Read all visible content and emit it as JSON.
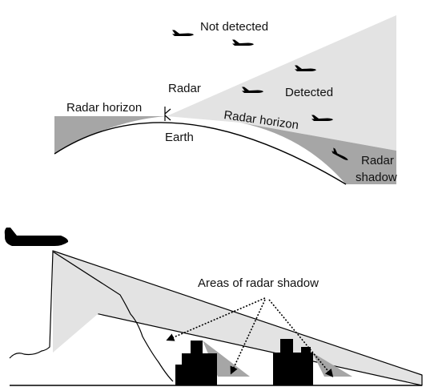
{
  "top_diagram": {
    "labels": {
      "not_detected": "Not detected",
      "radar": "Radar",
      "detected": "Detected",
      "radar_horizon_left": "Radar horizon",
      "radar_horizon_right": "Radar horizon",
      "earth": "Earth",
      "radar_shadow_line1": "Radar",
      "radar_shadow_line2": "shadow"
    }
  },
  "bottom_diagram": {
    "labels": {
      "areas_of_radar_shadow": "Areas of radar shadow"
    }
  },
  "colors": {
    "light_fill": "#e3e3e3",
    "mid_fill": "#a6a6a6",
    "stroke": "#000000"
  },
  "icons": [
    "airplane-icon",
    "radar-antenna-icon",
    "building-icon",
    "arrow-icon"
  ]
}
